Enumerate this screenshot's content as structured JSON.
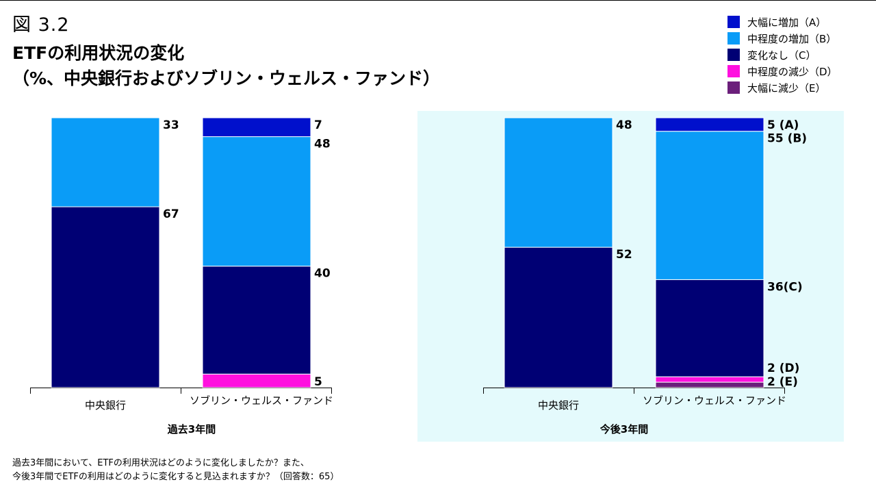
{
  "header": {
    "figure_number": "図 3.2",
    "title_line1": "ETFの利用状況の変化",
    "title_line2": "（%、中央銀行およびソブリン・ウェルス・ファンド）"
  },
  "legend": [
    {
      "label": "大幅に増加（A）",
      "color": "#0010cc"
    },
    {
      "label": "中程度の増加（B）",
      "color": "#0a9cf7"
    },
    {
      "label": "変化なし（C）",
      "color": "#000074"
    },
    {
      "label": "中程度の減少（D）",
      "color": "#ff10df"
    },
    {
      "label": "大幅に減少（E）",
      "color": "#6b1f7b"
    }
  ],
  "chart_data": {
    "type": "bar",
    "stacked": true,
    "ylim": [
      0,
      100
    ],
    "groups": [
      {
        "label": "過去3年間",
        "highlighted": false,
        "bars": [
          {
            "category": "中央銀行",
            "segments": [
              {
                "key": "C",
                "value": 67,
                "label": "67"
              },
              {
                "key": "B",
                "value": 33,
                "label": "33"
              }
            ]
          },
          {
            "category": "ソブリン・ウェルス・ファンド",
            "segments": [
              {
                "key": "D",
                "value": 5,
                "label": "5"
              },
              {
                "key": "C",
                "value": 40,
                "label": "40"
              },
              {
                "key": "B",
                "value": 48,
                "label": "48"
              },
              {
                "key": "A",
                "value": 7,
                "label": "7"
              }
            ]
          }
        ]
      },
      {
        "label": "今後3年間",
        "highlighted": true,
        "bars": [
          {
            "category": "中央銀行",
            "segments": [
              {
                "key": "C",
                "value": 52,
                "label": "52"
              },
              {
                "key": "B",
                "value": 48,
                "label": "48"
              }
            ]
          },
          {
            "category": "ソブリン・ウェルス・ファンド",
            "segments": [
              {
                "key": "E",
                "value": 2,
                "label": "2 (E)"
              },
              {
                "key": "D",
                "value": 2,
                "label": "2 (D)"
              },
              {
                "key": "C",
                "value": 36,
                "label": "36(C)"
              },
              {
                "key": "B",
                "value": 55,
                "label": "55 (B)"
              },
              {
                "key": "A",
                "value": 5,
                "label": "5 (A)"
              }
            ]
          }
        ]
      }
    ],
    "colors": {
      "A": "#0010cc",
      "B": "#0a9cf7",
      "C": "#000074",
      "D": "#ff10df",
      "E": "#6b1f7b"
    },
    "highlight_color": "#e4fafc"
  },
  "footnote": {
    "line1": "過去3年間において、ETFの利用状況はどのように変化しましたか？また、",
    "line2": "今後3年間でETFの利用はどのように変化すると見込まれますか？（回答数：65）"
  }
}
